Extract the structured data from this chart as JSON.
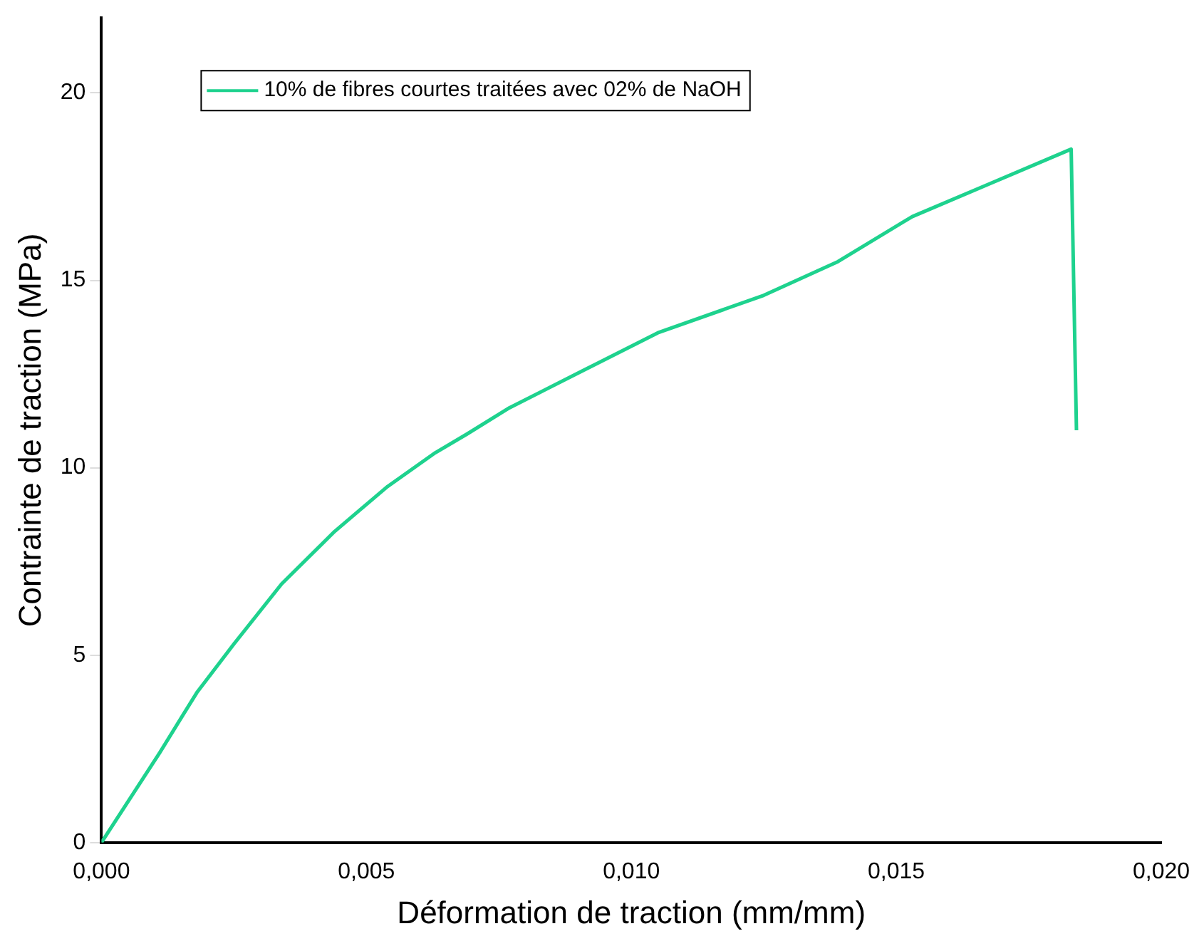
{
  "chart_data": {
    "type": "line",
    "xlabel": "Déformation de traction (mm/mm)",
    "ylabel": "Contrainte de traction (MPa)",
    "xlim": [
      0,
      0.02
    ],
    "xticks": [
      {
        "value": 0,
        "label": "0,000"
      },
      {
        "value": 0.005,
        "label": "0,005"
      },
      {
        "value": 0.01,
        "label": "0,010"
      },
      {
        "value": 0.015,
        "label": "0,015"
      },
      {
        "value": 0.02,
        "label": "0,020"
      }
    ],
    "ylim": [
      0,
      22
    ],
    "yticks": [
      0,
      5,
      10,
      15,
      20
    ],
    "grid": false,
    "legend": "top",
    "marker": "none",
    "line_style": "solid",
    "series": [
      {
        "name": "10% de fibres courtes traitées avec 02% de NaOH",
        "color": "#1ed28e",
        "x": [
          0,
          0.0011,
          0.0018,
          0.0025,
          0.0034,
          0.0044,
          0.0054,
          0.0063,
          0.0069,
          0.0077,
          0.0091,
          0.0105,
          0.0125,
          0.0139,
          0.0153,
          0.0168,
          0.0183,
          0.0184
        ],
        "values": [
          0,
          2.4,
          4.0,
          5.3,
          6.9,
          8.3,
          9.5,
          10.4,
          10.9,
          11.6,
          12.6,
          13.6,
          14.6,
          15.5,
          16.7,
          17.6,
          18.5,
          11.0
        ]
      }
    ]
  }
}
